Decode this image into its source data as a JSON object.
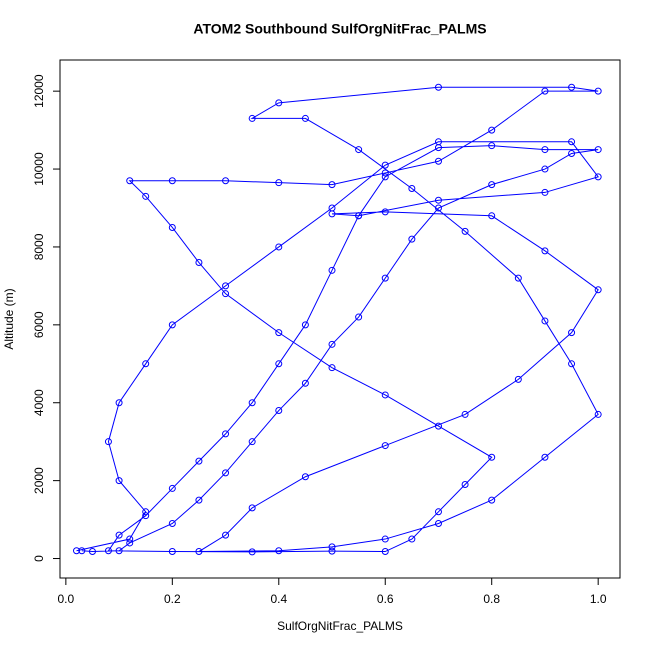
{
  "chart_data": {
    "type": "line",
    "title": "ATOM2 Southbound SulfOrgNitFrac_PALMS",
    "x_label": "SulfOrgNitFrac_PALMS",
    "y_label": "Altitude (m)",
    "xlim": [
      -0.011,
      1.041
    ],
    "ylim": [
      -500,
      12800
    ],
    "xticks": [
      {
        "value": 0,
        "label": "0.0"
      },
      0.2,
      0.4,
      0.6,
      0.8,
      {
        "value": 1,
        "label": "1.0"
      }
    ],
    "yticks": [
      0,
      2000,
      4000,
      6000,
      8000,
      10000,
      12000
    ],
    "x": [
      0.03,
      0.05,
      0.1,
      0.12,
      0.2,
      0.25,
      0.3,
      0.35,
      0.4,
      0.45,
      0.5,
      0.55,
      0.6,
      0.65,
      0.7,
      0.8,
      0.9,
      0.95,
      1.0,
      0.9,
      0.8,
      0.7,
      0.6,
      0.55,
      0.5,
      0.45,
      0.4,
      0.35,
      0.3,
      0.25,
      0.2,
      0.15,
      0.1,
      0.08,
      0.2,
      0.35,
      0.5,
      0.6,
      0.65,
      0.7,
      0.75,
      0.8,
      0.7,
      0.6,
      0.5,
      0.4,
      0.3,
      0.25,
      0.2,
      0.15,
      0.12,
      0.2,
      0.3,
      0.4,
      0.5,
      0.6,
      0.7,
      0.8,
      0.9,
      1.0,
      0.95,
      0.7,
      0.4,
      0.35,
      0.45,
      0.55,
      0.65,
      0.75,
      0.85,
      0.9,
      0.95,
      1.0,
      0.9,
      0.8,
      0.7,
      0.6,
      0.5,
      0.4,
      0.25,
      0.3,
      0.35,
      0.45,
      0.6,
      0.75,
      0.85,
      0.95,
      1.0,
      0.9,
      0.8,
      0.6,
      0.5,
      0.55,
      0.7,
      0.9,
      1.0,
      0.95,
      0.7,
      0.6,
      0.5,
      0.4,
      0.3,
      0.2,
      0.15,
      0.1,
      0.08,
      0.1,
      0.15,
      0.12,
      0.02
    ],
    "series": [
      {
        "name": "Altitude (m)",
        "color": "#0000ff",
        "values": [
          200,
          180,
          200,
          400,
          900,
          1500,
          2200,
          3000,
          3800,
          4500,
          5500,
          6200,
          7200,
          8200,
          9000,
          9600,
          10000,
          10400,
          10500,
          10500,
          10600,
          10550,
          9800,
          8800,
          7400,
          6000,
          5000,
          4000,
          3200,
          2500,
          1800,
          1100,
          600,
          200,
          180,
          170,
          190,
          180,
          500,
          1200,
          1900,
          2600,
          3400,
          4200,
          4900,
          5800,
          6800,
          7600,
          8500,
          9300,
          9700,
          9700,
          9700,
          9650,
          9600,
          9900,
          10200,
          11000,
          12000,
          12000,
          12100,
          12100,
          11700,
          11300,
          11300,
          10500,
          9500,
          8400,
          7200,
          6100,
          5000,
          3700,
          2600,
          1500,
          900,
          500,
          300,
          200,
          180,
          600,
          1300,
          2100,
          2900,
          3700,
          4600,
          5800,
          6900,
          7900,
          8800,
          8900,
          8850,
          8800,
          9200,
          9400,
          9800,
          10700,
          10700,
          10100,
          9000,
          8000,
          7000,
          6000,
          5000,
          4000,
          3000,
          2000,
          1200,
          500,
          200
        ]
      }
    ]
  }
}
